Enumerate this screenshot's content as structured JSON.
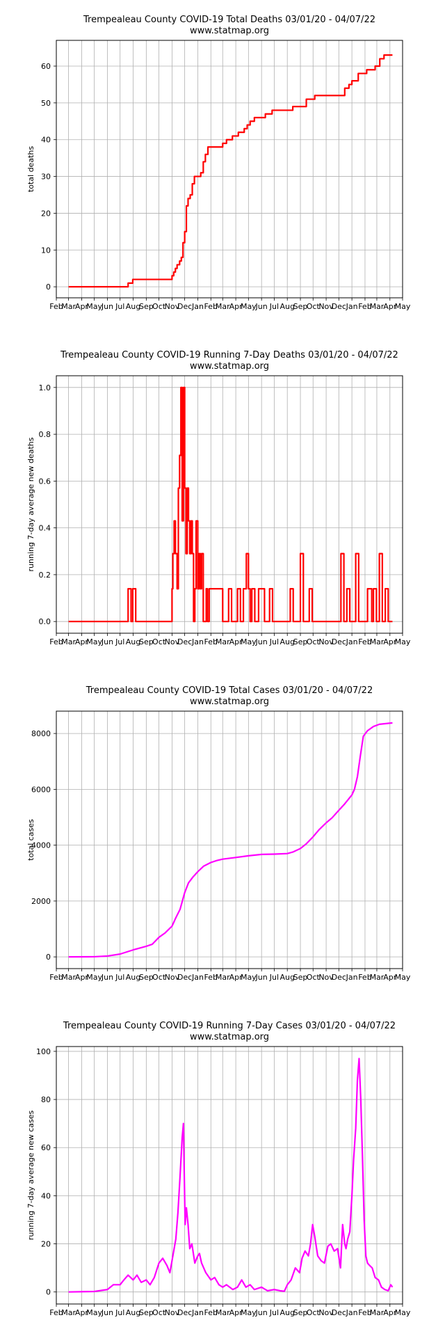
{
  "chart_data": [
    {
      "type": "line",
      "title": "Trempealeau County COVID-19 Total Deaths 03/01/20 - 04/07/22",
      "subtitle": "www.statmap.org",
      "xlabel": "",
      "ylabel": "total deaths",
      "xlim": [
        "2020-02-01",
        "2022-05-01"
      ],
      "ylim": [
        -3,
        67
      ],
      "yticks": [
        0,
        10,
        20,
        30,
        40,
        50,
        60
      ],
      "grid": true,
      "color": "#ff0000",
      "step": true,
      "series": [
        {
          "x": [
            "2020-03-01",
            "2020-07-20",
            "2020-07-31",
            "2020-11-01",
            "2020-11-05",
            "2020-11-09",
            "2020-11-13",
            "2020-11-19",
            "2020-11-23",
            "2020-11-27",
            "2020-12-01",
            "2020-12-05",
            "2020-12-09",
            "2020-12-14",
            "2020-12-19",
            "2020-12-24",
            "2020-12-29",
            "2021-01-08",
            "2021-01-14",
            "2021-01-19",
            "2021-01-25",
            "2021-02-01",
            "2021-03-01",
            "2021-03-10",
            "2021-03-24",
            "2021-04-07",
            "2021-04-21",
            "2021-04-28",
            "2021-05-05",
            "2021-05-15",
            "2021-05-31",
            "2021-06-10",
            "2021-06-26",
            "2021-08-14",
            "2021-09-15",
            "2021-10-05",
            "2021-12-15",
            "2021-12-25",
            "2022-01-01",
            "2022-01-16",
            "2022-02-05",
            "2022-02-25",
            "2022-03-08",
            "2022-03-18",
            "2022-04-07"
          ],
          "y": [
            0,
            1,
            2,
            3,
            4,
            5,
            6,
            7,
            8,
            12,
            15,
            22,
            24,
            25,
            28,
            30,
            30,
            31,
            34,
            36,
            38,
            38,
            39,
            40,
            41,
            42,
            43,
            44,
            45,
            46,
            46,
            47,
            48,
            49,
            51,
            52,
            54,
            55,
            56,
            58,
            59,
            60,
            62,
            63,
            63
          ]
        }
      ]
    },
    {
      "type": "line",
      "title": "Trempealeau County COVID-19 Running 7-Day Deaths 03/01/20 - 04/07/22",
      "subtitle": "www.statmap.org",
      "xlabel": "",
      "ylabel": "running 7-day average new deaths",
      "xlim": [
        "2020-02-01",
        "2022-05-01"
      ],
      "ylim": [
        -0.05,
        1.05
      ],
      "yticks": [
        0.0,
        0.2,
        0.4,
        0.6,
        0.8,
        1.0
      ],
      "ytick_labels": [
        "0.0",
        "0.2",
        "0.4",
        "0.6",
        "0.8",
        "1.0"
      ],
      "grid": true,
      "color": "#ff0000",
      "step": true,
      "series": [
        {
          "x": [
            "2020-03-01",
            "2020-07-20",
            "2020-07-27",
            "2020-07-31",
            "2020-08-07",
            "2020-11-01",
            "2020-11-03",
            "2020-11-06",
            "2020-11-09",
            "2020-11-13",
            "2020-11-16",
            "2020-11-19",
            "2020-11-22",
            "2020-11-25",
            "2020-11-28",
            "2020-12-01",
            "2020-12-04",
            "2020-12-07",
            "2020-12-10",
            "2020-12-13",
            "2020-12-16",
            "2020-12-19",
            "2020-12-22",
            "2020-12-25",
            "2020-12-28",
            "2021-01-01",
            "2021-01-04",
            "2021-01-07",
            "2021-01-10",
            "2021-01-14",
            "2021-01-17",
            "2021-01-21",
            "2021-01-24",
            "2021-01-28",
            "2021-02-01",
            "2021-03-01",
            "2021-03-15",
            "2021-03-22",
            "2021-04-05",
            "2021-04-12",
            "2021-04-19",
            "2021-04-26",
            "2021-05-01",
            "2021-05-05",
            "2021-05-09",
            "2021-05-16",
            "2021-05-25",
            "2021-06-08",
            "2021-06-20",
            "2021-06-27",
            "2021-08-08",
            "2021-08-15",
            "2021-09-01",
            "2021-09-08",
            "2021-09-22",
            "2021-09-29",
            "2021-12-06",
            "2021-12-13",
            "2021-12-20",
            "2021-12-27",
            "2022-01-10",
            "2022-01-17",
            "2022-02-07",
            "2022-02-17",
            "2022-02-21",
            "2022-02-28",
            "2022-03-07",
            "2022-03-14",
            "2022-03-21",
            "2022-03-28",
            "2022-04-07"
          ],
          "y": [
            0,
            0.14,
            0,
            0.14,
            0,
            0.14,
            0.29,
            0.43,
            0.29,
            0.14,
            0.57,
            0.71,
            1.0,
            0.43,
            1.0,
            0.57,
            0.29,
            0.57,
            0.43,
            0.29,
            0.43,
            0.29,
            0,
            0.14,
            0.43,
            0.14,
            0.29,
            0.14,
            0.29,
            0,
            0,
            0.14,
            0,
            0.14,
            0.14,
            0,
            0.14,
            0,
            0.14,
            0,
            0.14,
            0.29,
            0.14,
            0,
            0.14,
            0,
            0.14,
            0,
            0.14,
            0,
            0.14,
            0,
            0.29,
            0,
            0.14,
            0,
            0.29,
            0,
            0.14,
            0,
            0.29,
            0,
            0.14,
            0,
            0.14,
            0,
            0.29,
            0,
            0.14,
            0,
            0
          ]
        }
      ]
    },
    {
      "type": "line",
      "title": "Trempealeau County COVID-19 Total Cases 03/01/20 - 04/07/22",
      "subtitle": "www.statmap.org",
      "xlabel": "",
      "ylabel": "total cases",
      "xlim": [
        "2020-02-01",
        "2022-05-01"
      ],
      "ylim": [
        -420,
        8800
      ],
      "yticks": [
        0,
        2000,
        4000,
        6000,
        8000
      ],
      "grid": true,
      "color": "#ff00ff",
      "step": false,
      "series": [
        {
          "x": [
            "2020-03-01",
            "2020-05-01",
            "2020-06-01",
            "2020-07-01",
            "2020-08-01",
            "2020-09-01",
            "2020-09-15",
            "2020-10-01",
            "2020-10-15",
            "2020-11-01",
            "2020-11-10",
            "2020-11-20",
            "2020-12-01",
            "2020-12-10",
            "2020-12-20",
            "2021-01-01",
            "2021-01-15",
            "2021-02-01",
            "2021-02-15",
            "2021-03-01",
            "2021-04-01",
            "2021-05-01",
            "2021-06-01",
            "2021-07-01",
            "2021-08-01",
            "2021-08-15",
            "2021-09-01",
            "2021-09-15",
            "2021-10-01",
            "2021-10-15",
            "2021-11-01",
            "2021-11-15",
            "2021-12-01",
            "2021-12-15",
            "2022-01-01",
            "2022-01-07",
            "2022-01-14",
            "2022-01-21",
            "2022-01-28",
            "2022-02-07",
            "2022-02-21",
            "2022-03-07",
            "2022-04-07"
          ],
          "y": [
            0,
            5,
            30,
            100,
            250,
            380,
            450,
            700,
            850,
            1100,
            1400,
            1700,
            2300,
            2650,
            2850,
            3050,
            3250,
            3380,
            3450,
            3500,
            3560,
            3620,
            3670,
            3680,
            3700,
            3760,
            3880,
            4050,
            4300,
            4550,
            4800,
            4980,
            5250,
            5480,
            5800,
            6000,
            6450,
            7200,
            7900,
            8100,
            8250,
            8330,
            8380
          ]
        }
      ]
    },
    {
      "type": "line",
      "title": "Trempealeau County COVID-19 Running 7-Day Cases 03/01/20 - 04/07/22",
      "subtitle": "www.statmap.org",
      "xlabel": "",
      "ylabel": "running 7-day average new cases",
      "xlim": [
        "2020-02-01",
        "2022-05-01"
      ],
      "ylim": [
        -5,
        102
      ],
      "yticks": [
        0,
        20,
        40,
        60,
        80,
        100
      ],
      "grid": true,
      "color": "#ff00ff",
      "step": false,
      "series": [
        {
          "x": [
            "2020-03-01",
            "2020-05-01",
            "2020-06-01",
            "2020-06-15",
            "2020-07-01",
            "2020-07-10",
            "2020-07-20",
            "2020-08-01",
            "2020-08-10",
            "2020-08-20",
            "2020-09-01",
            "2020-09-10",
            "2020-09-20",
            "2020-10-01",
            "2020-10-10",
            "2020-10-20",
            "2020-10-27",
            "2020-11-05",
            "2020-11-10",
            "2020-11-15",
            "2020-11-20",
            "2020-11-25",
            "2020-11-28",
            "2020-12-02",
            "2020-12-05",
            "2020-12-09",
            "2020-12-13",
            "2020-12-18",
            "2020-12-25",
            "2021-01-01",
            "2021-01-05",
            "2021-01-10",
            "2021-01-20",
            "2021-02-01",
            "2021-02-10",
            "2021-02-20",
            "2021-03-01",
            "2021-03-10",
            "2021-03-25",
            "2021-04-05",
            "2021-04-15",
            "2021-04-25",
            "2021-05-05",
            "2021-05-15",
            "2021-06-01",
            "2021-06-15",
            "2021-07-01",
            "2021-07-15",
            "2021-07-25",
            "2021-08-01",
            "2021-08-10",
            "2021-08-20",
            "2021-08-30",
            "2021-09-05",
            "2021-09-12",
            "2021-09-20",
            "2021-09-25",
            "2021-09-30",
            "2021-10-05",
            "2021-10-12",
            "2021-10-20",
            "2021-10-28",
            "2021-11-05",
            "2021-11-12",
            "2021-11-20",
            "2021-11-28",
            "2021-12-05",
            "2021-12-10",
            "2021-12-15",
            "2021-12-18",
            "2021-12-22",
            "2021-12-27",
            "2022-01-01",
            "2022-01-05",
            "2022-01-10",
            "2022-01-14",
            "2022-01-18",
            "2022-01-22",
            "2022-01-26",
            "2022-01-30",
            "2022-02-03",
            "2022-02-07",
            "2022-02-12",
            "2022-02-18",
            "2022-02-25",
            "2022-03-05",
            "2022-03-12",
            "2022-03-20",
            "2022-03-28",
            "2022-04-03",
            "2022-04-07"
          ],
          "y": [
            0,
            0.2,
            1,
            3,
            3,
            5,
            7,
            5,
            7,
            4,
            5,
            3,
            6,
            12,
            14,
            11,
            8,
            17,
            22,
            33,
            48,
            64,
            70,
            28,
            35,
            28,
            18,
            20,
            12,
            15,
            16,
            12,
            8,
            5,
            6,
            3,
            2,
            3,
            1,
            2,
            5,
            2,
            3,
            1,
            2,
            0.5,
            1,
            0.5,
            0.3,
            3,
            5,
            10,
            8,
            14,
            17,
            15,
            20,
            28,
            23,
            15,
            13,
            12,
            19,
            20,
            17,
            18,
            10,
            28,
            20,
            18,
            22,
            25,
            40,
            55,
            68,
            88,
            97,
            80,
            56,
            30,
            15,
            12,
            11,
            10,
            6,
            5,
            2,
            1,
            0.5,
            3,
            2
          ]
        }
      ]
    }
  ],
  "x_tick_labels": [
    "Feb",
    "Mar",
    "Apr",
    "May",
    "Jun",
    "Jul",
    "Aug",
    "Sep",
    "Oct",
    "Nov",
    "Dec",
    "Jan",
    "Feb",
    "Mar",
    "Apr",
    "May",
    "Jun",
    "Jul",
    "Aug",
    "Sep",
    "Oct",
    "Nov",
    "Dec",
    "Jan",
    "Feb",
    "Mar",
    "Apr",
    "May"
  ]
}
